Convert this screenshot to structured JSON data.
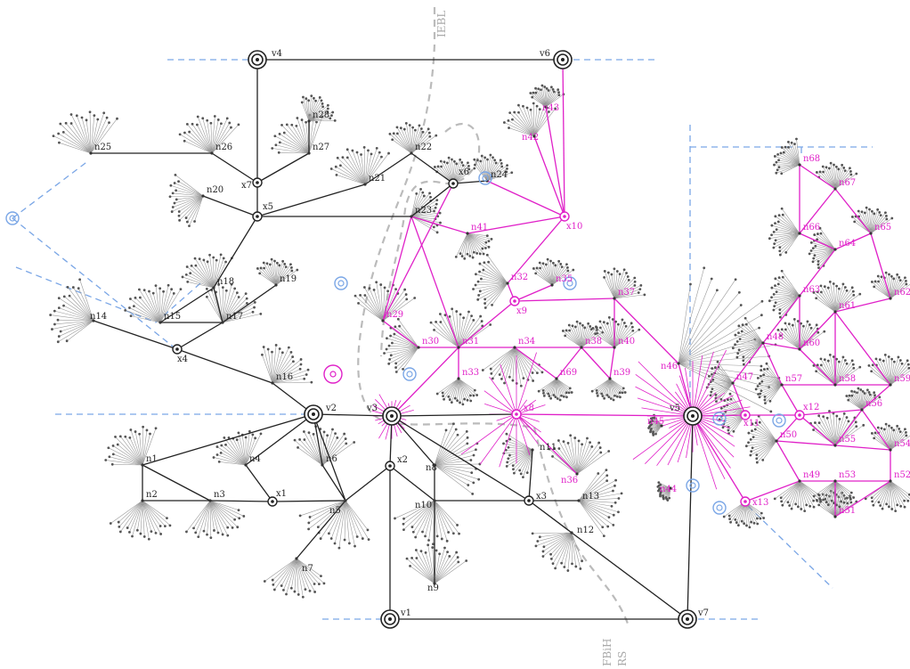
{
  "colors": {
    "black_net": "#222222",
    "magenta_net": "#e020c8",
    "blue_dash": "#7aa6e6",
    "grey_border": "#bbbbbb",
    "fan": "#999999"
  },
  "boundaries": {
    "top_label": "IEBL",
    "bottom_label_1": "FBiH",
    "bottom_label_2": "RS"
  },
  "substations_black": [
    "v1",
    "v2",
    "v3",
    "v4",
    "v6",
    "v7"
  ],
  "substations_magenta": [
    "v5"
  ],
  "switch_black": [
    "x1",
    "x2",
    "x3",
    "x4",
    "x5",
    "x6",
    "x7"
  ],
  "switch_magenta": [
    "x8",
    "x9",
    "x10",
    "x11",
    "x12",
    "x13"
  ],
  "nodes_black": [
    "n1",
    "n2",
    "n3",
    "n4",
    "n5",
    "n6",
    "n7",
    "n8",
    "n9",
    "n10",
    "n11",
    "n12",
    "n13",
    "n14",
    "n15",
    "n16",
    "n17",
    "n18",
    "n19",
    "n20",
    "n21",
    "n22",
    "n23",
    "n24",
    "n25",
    "n26",
    "n27",
    "n28"
  ],
  "nodes_magenta": [
    "n29",
    "n30",
    "n31",
    "n32",
    "n33",
    "n34",
    "n35",
    "n36",
    "n37",
    "n38",
    "n39",
    "n40",
    "n41",
    "n42",
    "n43",
    "n44",
    "n45",
    "n46",
    "n47",
    "n48",
    "n49",
    "n50",
    "n51",
    "n52",
    "n53",
    "n54",
    "n55",
    "n56",
    "n57",
    "n58",
    "n59",
    "n60",
    "n61",
    "n62",
    "n63",
    "n64",
    "n65",
    "n66",
    "n67",
    "n68",
    "n69"
  ]
}
